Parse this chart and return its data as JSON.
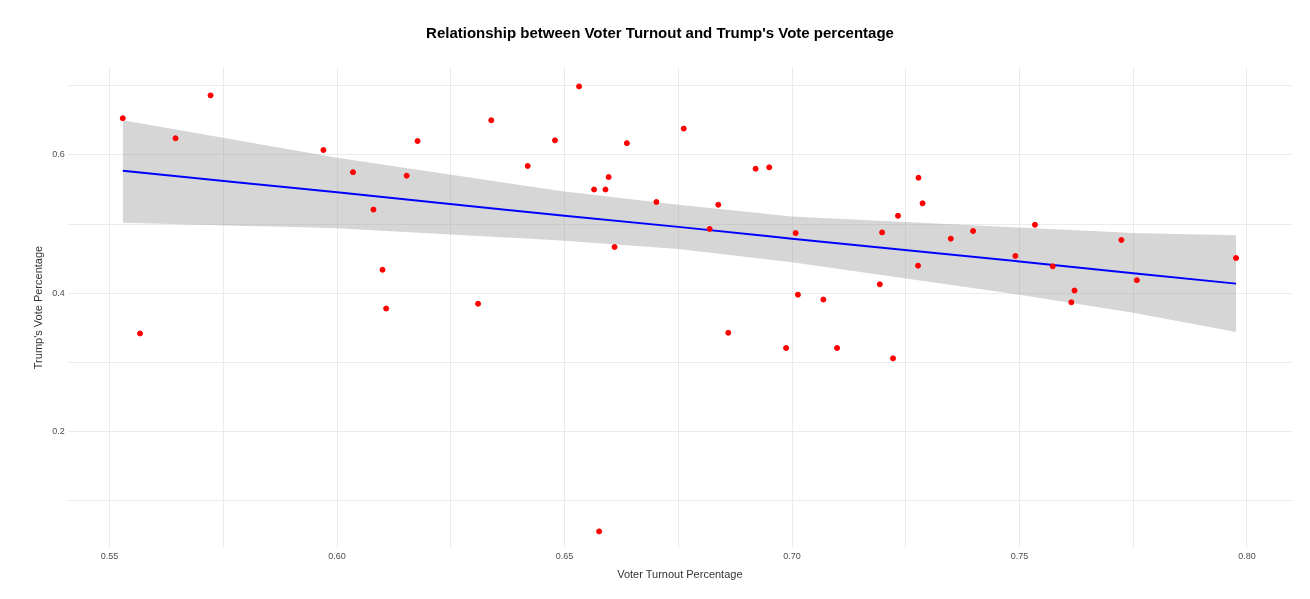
{
  "chart_data": {
    "type": "scatter",
    "title": "Relationship between Voter Turnout and Trump's Vote percentage",
    "xlabel": "Voter Turnout Percentage",
    "ylabel": "Trump's Vote Percentage",
    "xlim": [
      0.5408,
      0.8099
    ],
    "ylim": [
      0.032,
      0.727
    ],
    "xticks": [
      {
        "value": 0.55,
        "label": "0.55"
      },
      {
        "value": 0.575,
        "label": null
      },
      {
        "value": 0.6,
        "label": "0.60"
      },
      {
        "value": 0.625,
        "label": null
      },
      {
        "value": 0.65,
        "label": "0.65"
      },
      {
        "value": 0.675,
        "label": null
      },
      {
        "value": 0.7,
        "label": "0.70"
      },
      {
        "value": 0.725,
        "label": null
      },
      {
        "value": 0.75,
        "label": "0.75"
      },
      {
        "value": 0.775,
        "label": null
      },
      {
        "value": 0.8,
        "label": "0.80"
      }
    ],
    "yticks": [
      {
        "value": 0.1,
        "label": null
      },
      0.2,
      {
        "value": 0.3,
        "label": null
      },
      0.4,
      {
        "value": 0.5,
        "label": null
      },
      0.6,
      {
        "value": 0.7,
        "label": null
      }
    ],
    "grid": true,
    "legend": false,
    "series": [
      {
        "color": "#ff0000",
        "marker": "circle",
        "x": [
          0.5529,
          0.5722,
          0.5645,
          0.597,
          0.6177,
          0.6035,
          0.6153,
          0.608,
          0.61,
          0.6108,
          0.5567,
          0.631,
          0.6339,
          0.6532,
          0.6479,
          0.6419,
          0.6637,
          0.6762,
          0.6597,
          0.6565,
          0.659,
          0.6702,
          0.661,
          0.6838,
          0.6819,
          0.692,
          0.695,
          0.7008,
          0.7013,
          0.7069,
          0.686,
          0.6987,
          0.7099,
          0.7278,
          0.7287,
          0.7233,
          0.7198,
          0.7277,
          0.7193,
          0.7222,
          0.7349,
          0.7398,
          0.7491,
          0.7534,
          0.7573,
          0.7621,
          0.7614,
          0.7724,
          0.7758,
          0.7976,
          0.6576
        ],
        "values": [
          0.653,
          0.686,
          0.624,
          0.607,
          0.62,
          0.575,
          0.57,
          0.521,
          0.434,
          0.378,
          0.342,
          0.385,
          0.65,
          0.699,
          0.621,
          0.584,
          0.617,
          0.638,
          0.568,
          0.55,
          0.55,
          0.532,
          0.467,
          0.528,
          0.493,
          0.58,
          0.582,
          0.487,
          0.398,
          0.391,
          0.343,
          0.321,
          0.321,
          0.567,
          0.53,
          0.512,
          0.488,
          0.44,
          0.413,
          0.306,
          0.479,
          0.49,
          0.454,
          0.499,
          0.439,
          0.404,
          0.387,
          0.477,
          0.419,
          0.451,
          0.056
        ]
      },
      {
        "type": "line",
        "color": "#0000ff",
        "marker": "none",
        "x": [
          0.5529,
          0.6,
          0.65,
          0.675,
          0.7,
          0.75,
          0.775,
          0.7976
        ],
        "values": [
          0.577,
          0.546,
          0.512,
          0.496,
          0.479,
          0.446,
          0.429,
          0.414
        ],
        "lower": [
          0.502,
          0.494,
          0.476,
          0.464,
          0.445,
          0.398,
          0.372,
          0.344
        ],
        "upper": [
          0.65,
          0.596,
          0.547,
          0.528,
          0.511,
          0.495,
          0.487,
          0.484
        ]
      }
    ]
  }
}
